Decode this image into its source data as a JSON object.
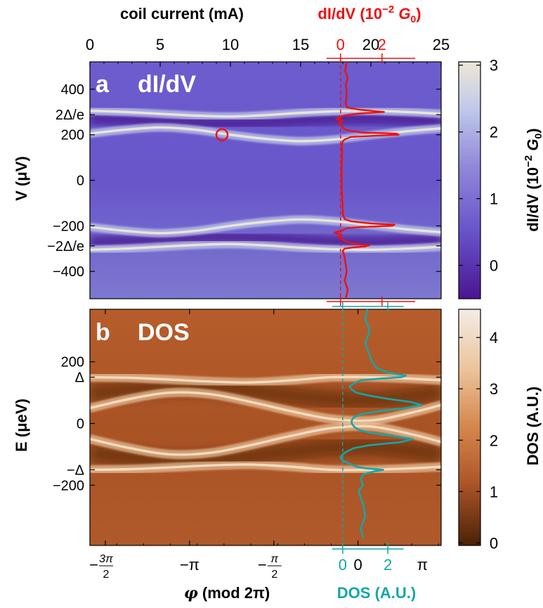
{
  "colors": {
    "red": "#ee1111",
    "teal": "#13a7a7",
    "purple_dark": "#4a1592",
    "purple_bg": "#6a57cc",
    "purple_mid": "#8f86d8",
    "purple_light": "#bfc8ea",
    "cream": "#ede7d6",
    "brown_dark": "#4b2208",
    "brown_bg": "#b2582a",
    "brown_mid": "#d4864c",
    "tan_light": "#ecc49c"
  },
  "chart_data": [
    {
      "panel": "a",
      "type": "heatmap",
      "panel_letter": "a",
      "title": "dI/dV",
      "top_axis": {
        "label": "coil current",
        "unit": "(mA)",
        "range": [
          0,
          25
        ],
        "ticks": [
          0,
          5,
          10,
          15,
          20,
          25
        ],
        "tick_labels": [
          "0",
          "5",
          "10",
          "15",
          "20",
          "25"
        ]
      },
      "ylabel": "V",
      "yunit": "(μV)",
      "ylim": [
        -520,
        520
      ],
      "yticks": [
        {
          "v": 400,
          "label": "400"
        },
        {
          "v": 288,
          "label": "2Δ/e"
        },
        {
          "v": 200,
          "label": "200"
        },
        {
          "v": 0,
          "label": "0"
        },
        {
          "v": -200,
          "label": "−200"
        },
        {
          "v": -288,
          "label": "−2Δ/e"
        },
        {
          "v": -400,
          "label": "−400"
        }
      ],
      "bands_uV": [
        {
          "name": "upper-gap",
          "x": [
            0,
            2.5,
            5,
            7.5,
            10,
            12.5,
            15,
            17.5,
            20,
            22.5,
            25
          ],
          "y": [
            305,
            300,
            292,
            284,
            280,
            286,
            296,
            303,
            305,
            300,
            292
          ]
        },
        {
          "name": "upper-abs",
          "x": [
            0,
            2.5,
            5,
            7.5,
            10,
            12.5,
            15,
            17.5,
            20,
            22.5,
            25
          ],
          "y": [
            205,
            222,
            232,
            222,
            200,
            182,
            172,
            180,
            198,
            215,
            228
          ]
        },
        {
          "name": "lower-abs",
          "x": [
            0,
            2.5,
            5,
            7.5,
            10,
            12.5,
            15,
            17.5,
            20,
            22.5,
            25
          ],
          "y": [
            -205,
            -222,
            -232,
            -222,
            -200,
            -182,
            -172,
            -180,
            -198,
            -215,
            -228
          ]
        },
        {
          "name": "lower-gap",
          "x": [
            0,
            2.5,
            5,
            7.5,
            10,
            12.5,
            15,
            17.5,
            20,
            22.5,
            25
          ],
          "y": [
            -305,
            -300,
            -292,
            -284,
            -280,
            -286,
            -296,
            -303,
            -305,
            -300,
            -292
          ]
        }
      ],
      "marker": {
        "current_mA": 9.4,
        "V_uV": 200,
        "shape": "circle"
      },
      "linecut": {
        "label": "dI/dV",
        "unit": "(10",
        "unit_exponent": "−2",
        "unit_after": " G",
        "unit_sub": "0",
        "unit_close": ")",
        "xlim": [
          -0.4,
          3.6
        ],
        "ticks": [
          0,
          2
        ],
        "tick_labels": [
          "0",
          "2"
        ],
        "V_uV": [
          520,
          480,
          450,
          420,
          390,
          360,
          340,
          320,
          310,
          300,
          295,
          290,
          285,
          280,
          270,
          260,
          250,
          240,
          230,
          220,
          210,
          205,
          200,
          195,
          190,
          180,
          170,
          150,
          120,
          80,
          40,
          0,
          -40,
          -80,
          -120,
          -150,
          -170,
          -180,
          -190,
          -195,
          -200,
          -205,
          -210,
          -220,
          -230,
          -240,
          -250,
          -260,
          -270,
          -280,
          -285,
          -290,
          -295,
          -300,
          -310,
          -320,
          -340,
          -370,
          -400,
          -440,
          -480,
          -520
        ],
        "didv": [
          0.3,
          0.22,
          0.35,
          0.25,
          0.3,
          0.28,
          0.25,
          0.3,
          0.9,
          2.1,
          1.2,
          0.6,
          0.2,
          0.05,
          -0.2,
          0.1,
          -0.1,
          0.05,
          0.1,
          0.3,
          1.0,
          2.7,
          2.8,
          1.5,
          0.5,
          0.2,
          0.1,
          0.05,
          0.08,
          0.06,
          0.05,
          0.05,
          0.06,
          0.08,
          0.1,
          0.12,
          0.2,
          0.5,
          1.5,
          2.6,
          2.5,
          1.0,
          0.3,
          0.1,
          -0.3,
          0.05,
          -0.1,
          0.1,
          0.3,
          0.8,
          1.4,
          1.2,
          0.6,
          0.2,
          0.1,
          0.15,
          0.2,
          0.25,
          0.3,
          0.2,
          0.35,
          0.25
        ],
        "dashed_zero": true
      },
      "colorbar": {
        "label": "dI/dV",
        "unit": "(10",
        "unit_exponent": "−2",
        "unit_after": " G",
        "unit_sub": "0",
        "unit_close": ")",
        "range": [
          -0.5,
          3.05
        ],
        "ticks": [
          0,
          1,
          2,
          3
        ],
        "tick_labels": [
          "0",
          "1",
          "2",
          "3"
        ]
      }
    },
    {
      "panel": "b",
      "type": "heatmap",
      "panel_letter": "b",
      "title": "DOS",
      "bottom_axis": {
        "label": "φ",
        "label_suffix": " (mod 2π)",
        "range_rad": [
          -5.0,
          1.55
        ],
        "ticks": [
          {
            "v": -4.712,
            "label": "−",
            "frac_num": "3π",
            "frac_den": "2"
          },
          {
            "v": -3.1416,
            "label": "−π"
          },
          {
            "v": -1.5708,
            "label": "−",
            "frac_num": "π",
            "frac_den": "2"
          },
          {
            "v": 0,
            "label": "0"
          }
        ]
      },
      "ylabel": "E",
      "yunit": "(μeV)",
      "ylim": [
        -395,
        370
      ],
      "yticks": [
        {
          "v": 200,
          "label": "200"
        },
        {
          "v": 150,
          "label": "Δ"
        },
        {
          "v": 0,
          "label": "0"
        },
        {
          "v": -150,
          "label": "−Δ"
        },
        {
          "v": -200,
          "label": "−200"
        }
      ],
      "bands_ueV": [
        {
          "name": "upper-gap",
          "x": [
            -5,
            -4.25,
            -3.5,
            -2.75,
            -2,
            -1.25,
            -0.5,
            0.25,
            1,
            1.55
          ],
          "y": [
            150,
            148,
            142,
            136,
            133,
            140,
            150,
            150,
            145,
            140
          ]
        },
        {
          "name": "upper-abs",
          "x": [
            -5,
            -4.25,
            -3.5,
            -2.75,
            -2,
            -1.25,
            -0.5,
            0.25,
            1,
            1.55
          ],
          "y": [
            50,
            80,
            100,
            95,
            70,
            40,
            15,
            10,
            35,
            60
          ]
        },
        {
          "name": "lower-abs",
          "x": [
            -5,
            -4.25,
            -3.5,
            -2.75,
            -2,
            -1.25,
            -0.5,
            0.25,
            1,
            1.55
          ],
          "y": [
            -50,
            -80,
            -100,
            -95,
            -70,
            -40,
            -15,
            -10,
            -35,
            -60
          ]
        },
        {
          "name": "lower-gap",
          "x": [
            -5,
            -4.25,
            -3.5,
            -2.75,
            -2,
            -1.25,
            -0.5,
            0.25,
            1,
            1.55
          ],
          "y": [
            -150,
            -148,
            -142,
            -136,
            -133,
            -140,
            -150,
            -150,
            -145,
            -140
          ]
        }
      ],
      "linecut": {
        "label": "DOS",
        "unit": "(A.U.)",
        "xlim": [
          -0.4,
          4.3
        ],
        "ticks": [
          0,
          2
        ],
        "tick_labels": [
          "0",
          "2"
        ],
        "pi_tick_label": "π",
        "E_ueV": [
          370,
          340,
          300,
          260,
          220,
          200,
          180,
          165,
          155,
          150,
          145,
          140,
          130,
          120,
          110,
          100,
          90,
          80,
          70,
          60,
          50,
          40,
          30,
          20,
          10,
          0,
          -10,
          -20,
          -30,
          -40,
          -50,
          -60,
          -70,
          -80,
          -90,
          -100,
          -110,
          -120,
          -130,
          -140,
          -145,
          -150,
          -155,
          -165,
          -180,
          -200,
          -220,
          -260,
          -300,
          -340,
          -370
        ],
        "dos": [
          1.1,
          1.0,
          1.2,
          1.0,
          1.2,
          1.3,
          1.5,
          2.0,
          2.8,
          2.6,
          1.6,
          0.8,
          0.5,
          0.3,
          0.4,
          0.6,
          1.2,
          2.0,
          3.0,
          3.5,
          2.8,
          1.6,
          0.8,
          0.5,
          0.4,
          0.4,
          0.5,
          0.7,
          1.2,
          2.2,
          3.1,
          2.6,
          1.2,
          0.5,
          0.2,
          0.0,
          -0.1,
          0.0,
          0.3,
          0.6,
          1.0,
          1.8,
          1.4,
          0.9,
          0.8,
          0.9,
          0.7,
          0.9,
          1.0,
          0.8,
          0.9
        ],
        "dashed_zero": true
      },
      "colorbar": {
        "label": "DOS",
        "unit": "(A.U.)",
        "range": [
          -0.05,
          4.55
        ],
        "ticks": [
          0,
          1,
          2,
          3,
          4
        ],
        "tick_labels": [
          "0",
          "1",
          "2",
          "3",
          "4"
        ]
      }
    }
  ]
}
